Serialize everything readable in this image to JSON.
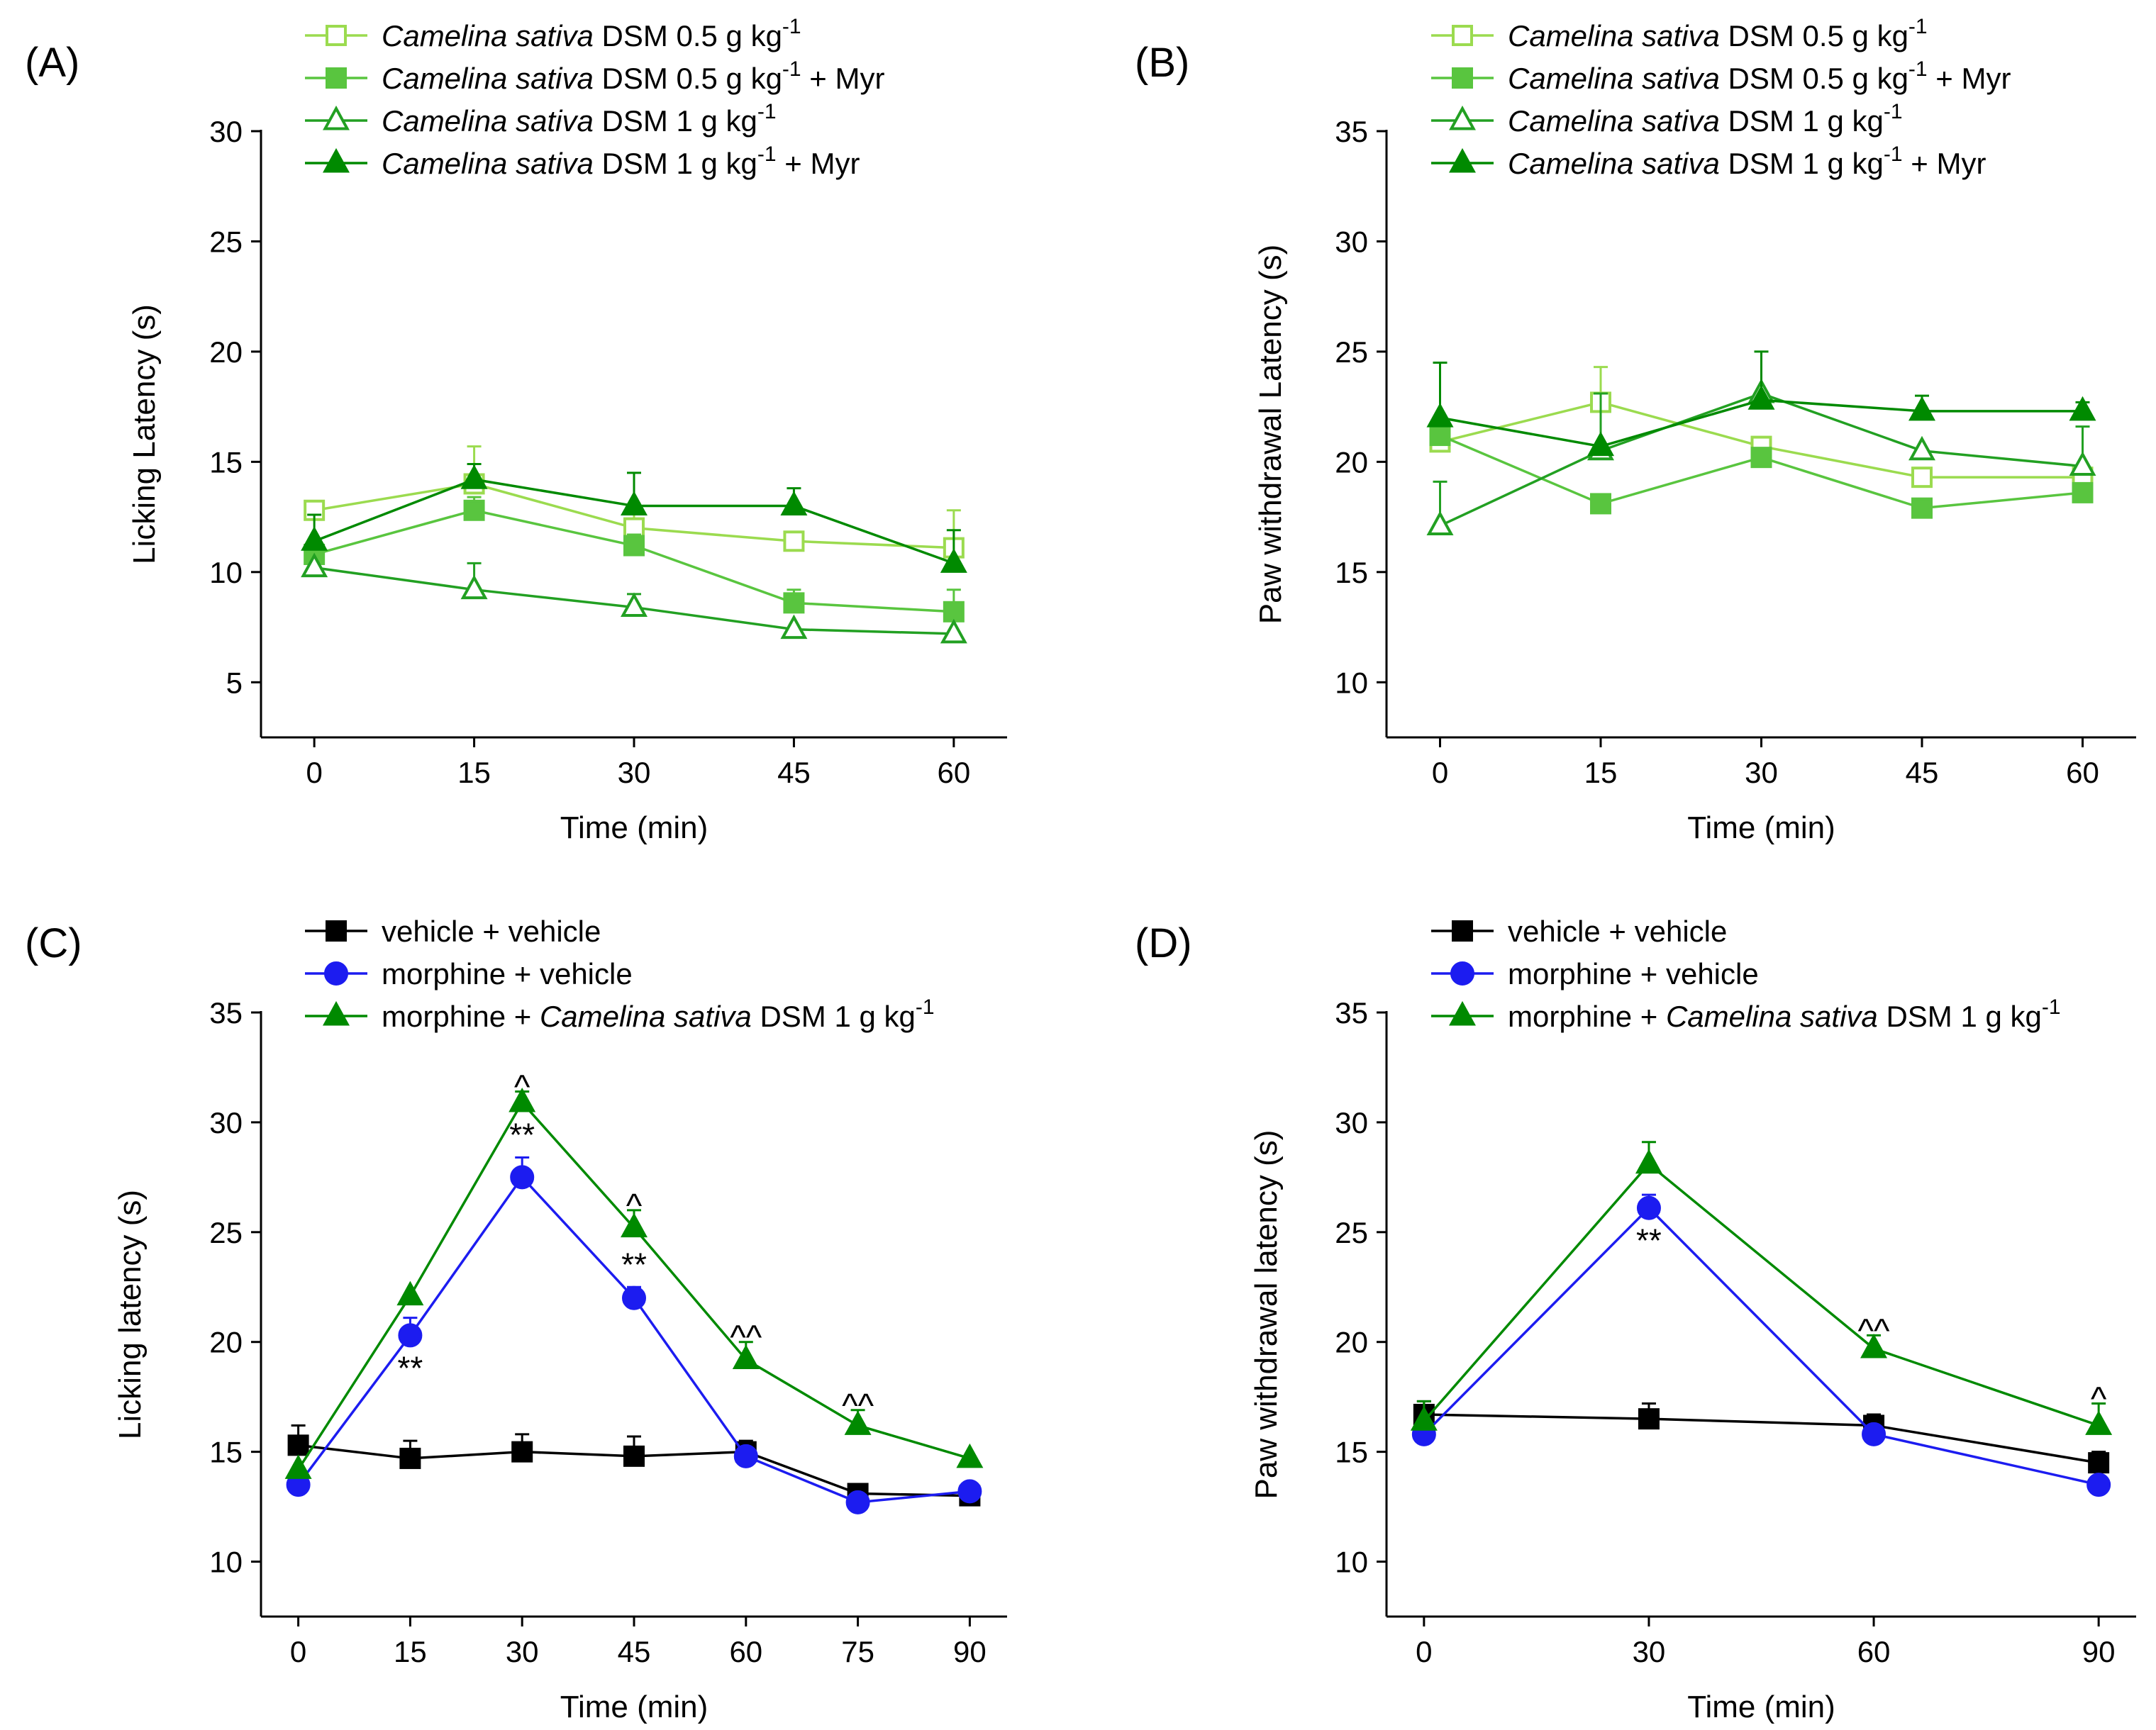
{
  "colors": {
    "light_green": "#9BDB4F",
    "mid_green": "#59C53F",
    "dark_green": "#22A022",
    "forest_green": "#008A00",
    "black": "#000000",
    "blue": "#1C1CF0"
  },
  "chart_data": [
    {
      "id": "A",
      "type": "line",
      "panel_label": "(A)",
      "xlabel": "Time (min)",
      "ylabel": "Licking Latency (s)",
      "ylim": [
        2.5,
        30
      ],
      "yticks": [
        5,
        10,
        15,
        20,
        25,
        30
      ],
      "xlim": [
        -5,
        65
      ],
      "xticks": [
        0,
        15,
        30,
        45,
        60
      ],
      "x": [
        0,
        15,
        30,
        45,
        60
      ],
      "legend": "top",
      "series": [
        {
          "name": "Camelina sativa DSM 0.5 g kg-1",
          "label_italic": "Camelina sativa",
          "label_rest": " DSM 0.5 g kg",
          "label_sup": "-1",
          "label_tail": "",
          "marker": "square",
          "filled": false,
          "color": "light_green",
          "values": [
            12.8,
            14.0,
            12.0,
            11.4,
            11.1
          ],
          "errors": [
            0.0,
            1.7,
            0.8,
            0.0,
            1.7
          ],
          "annotations": []
        },
        {
          "name": "Camelina sativa DSM 0.5 g kg-1 + Myr",
          "label_italic": "Camelina sativa",
          "label_rest": " DSM 0.5 g kg",
          "label_sup": "-1",
          "label_tail": " + Myr",
          "marker": "square",
          "filled": true,
          "color": "mid_green",
          "values": [
            10.8,
            12.8,
            11.2,
            8.6,
            8.2
          ],
          "errors": [
            0.5,
            0.6,
            0.5,
            0.6,
            1.0
          ],
          "annotations": []
        },
        {
          "name": "Camelina sativa DSM 1 g kg-1",
          "label_italic": "Camelina sativa",
          "label_rest": " DSM 1 g kg",
          "label_sup": "-1",
          "label_tail": "",
          "marker": "triangle",
          "filled": false,
          "color": "dark_green",
          "values": [
            10.2,
            9.2,
            8.4,
            7.4,
            7.2
          ],
          "errors": [
            0.0,
            1.2,
            0.6,
            0.0,
            0.0
          ],
          "annotations": []
        },
        {
          "name": "Camelina sativa DSM 1 g kg-1 + Myr",
          "label_italic": "Camelina sativa",
          "label_rest": " DSM 1 g kg",
          "label_sup": "-1",
          "label_tail": " + Myr",
          "marker": "triangle",
          "filled": true,
          "color": "forest_green",
          "values": [
            11.4,
            14.2,
            13.0,
            13.0,
            10.4
          ],
          "errors": [
            1.2,
            0.7,
            1.5,
            0.8,
            1.5
          ],
          "annotations": []
        }
      ]
    },
    {
      "id": "B",
      "type": "line",
      "panel_label": "(B)",
      "xlabel": "Time (min)",
      "ylabel": "Paw withdrawal Latency (s)",
      "ylim": [
        7.5,
        35
      ],
      "yticks": [
        10,
        15,
        20,
        25,
        30,
        35
      ],
      "xlim": [
        -5,
        65
      ],
      "xticks": [
        0,
        15,
        30,
        45,
        60
      ],
      "x": [
        0,
        15,
        30,
        45,
        60
      ],
      "legend": "top",
      "series": [
        {
          "name": "Camelina sativa DSM 0.5 g kg-1",
          "label_italic": "Camelina sativa",
          "label_rest": " DSM 0.5 g kg",
          "label_sup": "-1",
          "label_tail": "",
          "marker": "square",
          "filled": false,
          "color": "light_green",
          "values": [
            20.9,
            22.7,
            20.7,
            19.3,
            19.3
          ],
          "errors": [
            0.0,
            1.6,
            0.0,
            0.0,
            0.0
          ],
          "annotations": []
        },
        {
          "name": "Camelina sativa DSM 0.5 g kg-1 + Myr",
          "label_italic": "Camelina sativa",
          "label_rest": " DSM 0.5 g kg",
          "label_sup": "-1",
          "label_tail": " + Myr",
          "marker": "square",
          "filled": true,
          "color": "mid_green",
          "values": [
            21.2,
            18.1,
            20.2,
            17.9,
            18.6
          ],
          "errors": [
            0.0,
            0.0,
            0.0,
            0.0,
            0.0
          ],
          "annotations": []
        },
        {
          "name": "Camelina sativa DSM 1 g kg-1",
          "label_italic": "Camelina sativa",
          "label_rest": " DSM 1 g kg",
          "label_sup": "-1",
          "label_tail": "",
          "marker": "triangle",
          "filled": false,
          "color": "dark_green",
          "values": [
            17.1,
            20.5,
            23.1,
            20.5,
            19.8
          ],
          "errors": [
            2.0,
            2.6,
            0.0,
            0.0,
            1.8
          ],
          "annotations": []
        },
        {
          "name": "Camelina sativa DSM 1 g kg-1 + Myr",
          "label_italic": "Camelina sativa",
          "label_rest": " DSM 1 g kg",
          "label_sup": "-1",
          "label_tail": " + Myr",
          "marker": "triangle",
          "filled": true,
          "color": "forest_green",
          "values": [
            22.0,
            20.7,
            22.8,
            22.3,
            22.3
          ],
          "errors": [
            2.5,
            0.0,
            2.2,
            0.7,
            0.4
          ],
          "annotations": []
        }
      ]
    },
    {
      "id": "C",
      "type": "line",
      "panel_label": "(C)",
      "xlabel": "Time (min)",
      "ylabel": "Licking latency (s)",
      "ylim": [
        7.5,
        35
      ],
      "yticks": [
        10,
        15,
        20,
        25,
        30,
        35
      ],
      "xlim": [
        -5,
        95
      ],
      "xticks": [
        0,
        15,
        30,
        45,
        60,
        75,
        90
      ],
      "x": [
        0,
        15,
        30,
        45,
        60,
        75,
        90
      ],
      "legend": "top",
      "series": [
        {
          "name": "vehicle + vehicle",
          "label_italic": "",
          "label_rest": "vehicle + vehicle",
          "label_sup": "",
          "label_tail": "",
          "marker": "square",
          "filled": true,
          "color": "black",
          "values": [
            15.3,
            14.7,
            15.0,
            14.8,
            15.0,
            13.1,
            13.0
          ],
          "errors": [
            0.9,
            0.8,
            0.8,
            0.9,
            0.5,
            0.0,
            0.0
          ],
          "annotations": []
        },
        {
          "name": "morphine + vehicle",
          "label_italic": "",
          "label_rest": "morphine + vehicle",
          "label_sup": "",
          "label_tail": "",
          "marker": "circle",
          "filled": true,
          "color": "blue",
          "values": [
            13.5,
            20.3,
            27.5,
            22.0,
            14.8,
            12.7,
            13.2
          ],
          "errors": [
            0.0,
            0.8,
            0.9,
            0.5,
            0.0,
            0.0,
            0.3
          ],
          "annotations": [
            {
              "x": 15,
              "text": "**",
              "pos": "below"
            },
            {
              "x": 30,
              "text": "**",
              "pos": "above"
            },
            {
              "x": 45,
              "text": "**",
              "pos": "above"
            }
          ]
        },
        {
          "name": "morphine + Camelina sativa DSM 1 g kg-1",
          "label_italic": "Camelina sativa",
          "label_pre": "morphine + ",
          "label_rest": " DSM 1 g kg",
          "label_sup": "-1",
          "label_tail": "",
          "marker": "triangle",
          "filled": true,
          "color": "forest_green",
          "values": [
            14.2,
            22.1,
            30.9,
            25.2,
            19.2,
            16.2,
            14.7
          ],
          "errors": [
            0.0,
            0.0,
            0.5,
            0.8,
            0.8,
            0.7,
            0.0
          ],
          "annotations": [
            {
              "x": 30,
              "text": "^",
              "pos": "above"
            },
            {
              "x": 45,
              "text": "^",
              "pos": "above"
            },
            {
              "x": 60,
              "text": "^^",
              "pos": "above"
            },
            {
              "x": 75,
              "text": "^^",
              "pos": "above"
            }
          ]
        }
      ]
    },
    {
      "id": "D",
      "type": "line",
      "panel_label": "(D)",
      "xlabel": "Time (min)",
      "ylabel": "Paw withdrawal latency (s)",
      "ylim": [
        7.5,
        35
      ],
      "yticks": [
        10,
        15,
        20,
        25,
        30,
        35
      ],
      "xlim": [
        -5,
        95
      ],
      "xticks": [
        0,
        30,
        60,
        90
      ],
      "x": [
        0,
        30,
        60,
        90
      ],
      "legend": "top",
      "series": [
        {
          "name": "vehicle + vehicle",
          "label_italic": "",
          "label_rest": "vehicle + vehicle",
          "label_sup": "",
          "label_tail": "",
          "marker": "square",
          "filled": true,
          "color": "black",
          "values": [
            16.7,
            16.5,
            16.2,
            14.5
          ],
          "errors": [
            0.6,
            0.7,
            0.5,
            0.5
          ],
          "annotations": []
        },
        {
          "name": "morphine + vehicle",
          "label_italic": "",
          "label_rest": "morphine + vehicle",
          "label_sup": "",
          "label_tail": "",
          "marker": "circle",
          "filled": true,
          "color": "blue",
          "values": [
            15.8,
            26.1,
            15.8,
            13.5
          ],
          "errors": [
            0.0,
            0.6,
            0.0,
            0.0
          ],
          "annotations": [
            {
              "x": 30,
              "text": "**",
              "pos": "below"
            }
          ]
        },
        {
          "name": "morphine + Camelina sativa DSM 1 g kg-1",
          "label_italic": "Camelina sativa",
          "label_pre": "morphine + ",
          "label_rest": " DSM 1 g kg",
          "label_sup": "-1",
          "label_tail": "",
          "marker": "triangle",
          "filled": true,
          "color": "forest_green",
          "values": [
            16.4,
            28.1,
            19.7,
            16.2
          ],
          "errors": [
            0.9,
            1.0,
            0.6,
            1.0
          ],
          "annotations": [
            {
              "x": 60,
              "text": "^^",
              "pos": "above"
            },
            {
              "x": 90,
              "text": "^",
              "pos": "above"
            }
          ]
        }
      ]
    }
  ]
}
